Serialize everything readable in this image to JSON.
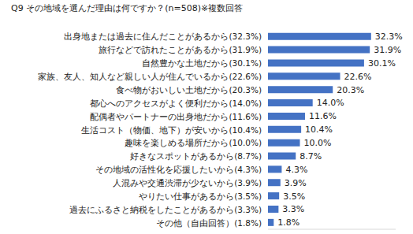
{
  "chart_data": {
    "type": "bar",
    "orientation": "horizontal",
    "title": "Q9 その地域を選んだ理由は何ですか？(n=508)※複数回答",
    "categories": [
      "出身地または過去に住んだことがあるから(32.3%)",
      "旅行などで訪れたことがあるから(31.9%)",
      "自然豊かな土地だから(30.1%)",
      "家族、友人、知人など親しい人が住んでいるから(22.6%)",
      "食べ物がおいしい土地だから(20.3%)",
      "都心へのアクセスがよく便利だから(14.0%)",
      "配偶者やパートナーの出身地だから(11.6%)",
      "生活コスト（物価、地下）が安いから(10.4%)",
      "趣味を楽しめる場所だから(10.0%)",
      "好きなスポットがあるから(8.7%)",
      "その地域の活性化を応援したいから(4.3%)",
      "人混みや交通渋滞が少ないから(3.9%)",
      "やりたい仕事があるから(3.5%)",
      "過去にふるさと納税をしたことがあるから(3.3%)",
      "その他（自由回答）(1.8%)"
    ],
    "values": [
      32.3,
      31.9,
      30.1,
      22.6,
      20.3,
      14.0,
      11.6,
      10.4,
      10.0,
      8.7,
      4.3,
      3.9,
      3.5,
      3.3,
      1.8
    ],
    "value_labels": [
      "32.3%",
      "31.9%",
      "30.1%",
      "22.6%",
      "20.3%",
      "14.0%",
      "11.6%",
      "10.4%",
      "10.0%",
      "8.7%",
      "4.3%",
      "3.9%",
      "3.5%",
      "3.3%",
      "1.8%"
    ],
    "color": "#4472c4",
    "xlim": [
      0,
      40
    ],
    "data_labels": true,
    "tick_labels": "y",
    "grid": false
  }
}
